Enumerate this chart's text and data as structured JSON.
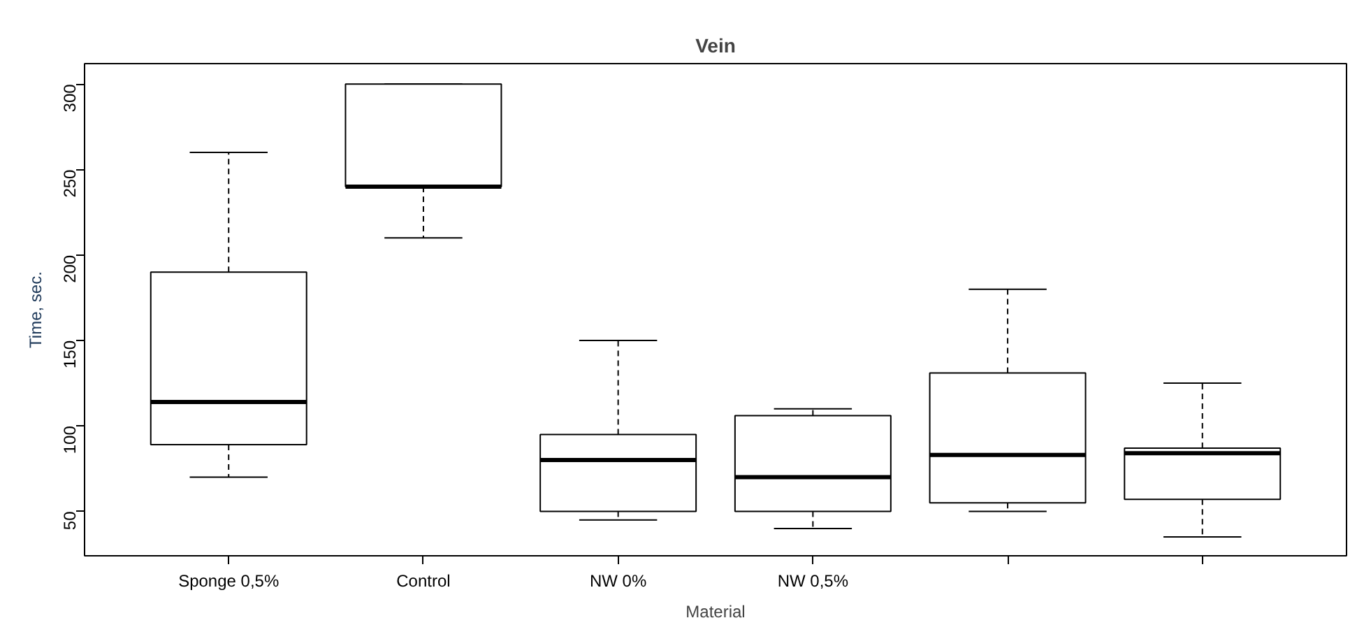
{
  "chart_data": {
    "type": "box",
    "title": "Vein",
    "xlabel": "Material",
    "ylabel": "Time, sec.",
    "categories": [
      "Sponge 0,5%",
      "Control",
      "NW 0%",
      "NW 0,5%",
      null,
      null
    ],
    "boxes": [
      {
        "low": 70,
        "q1": 89,
        "median": 114,
        "q3": 190,
        "high": 260
      },
      {
        "low": 210,
        "q1": 240,
        "median": 240,
        "q3": 300,
        "high": 300
      },
      {
        "low": 45,
        "q1": 50,
        "median": 80,
        "q3": 95,
        "high": 150
      },
      {
        "low": 40,
        "q1": 50,
        "median": 70,
        "q3": 106,
        "high": 110
      },
      {
        "low": 50,
        "q1": 55,
        "median": 83,
        "q3": 131,
        "high": 180
      },
      {
        "low": 35,
        "q1": 57,
        "median": 84,
        "q3": 87,
        "high": 125
      }
    ],
    "color": "#000000",
    "ylim": [
      24,
      312
    ],
    "yticks": [
      50,
      100,
      150,
      200,
      250,
      300
    ],
    "grid": false
  }
}
